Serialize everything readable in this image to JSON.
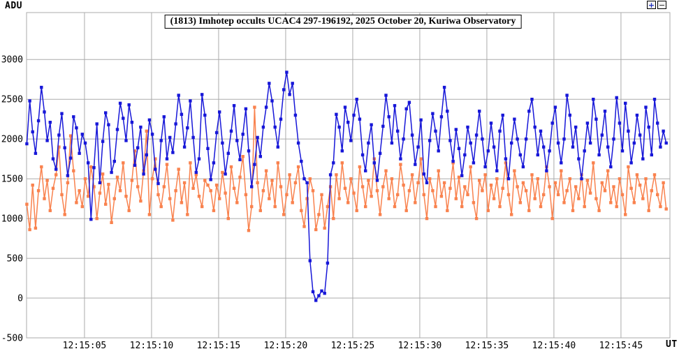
{
  "window": {
    "zoom_in_label": "+",
    "zoom_out_label": "−"
  },
  "colors": {
    "target": "#1717D8",
    "comparison": "#F9824E",
    "grid": "#ABABAB",
    "background": "#FFFFFF",
    "text": "#000000"
  },
  "chart_data": {
    "type": "line",
    "title": "(1813) Imhotep occults UCAC4 297-196192, 2025 October 20, Kuriwa Observatory",
    "grid": true,
    "legend": "none",
    "y_axis": {
      "label": "ADU",
      "ylim": [
        -500,
        3590
      ],
      "tick_values": [
        3000,
        2500,
        2000,
        1500,
        1000,
        500,
        0,
        -500
      ],
      "tick_labels": [
        "3000",
        "2500",
        "2000",
        "1500",
        "1000",
        "500",
        "0",
        "-500"
      ]
    },
    "x_axis": {
      "label": "UT",
      "xlim_seconds": [
        0.68,
        48.65
      ],
      "tick_seconds": [
        5,
        10,
        15,
        20,
        25,
        30,
        35,
        40,
        45
      ],
      "tick_labels": [
        "12:15:05",
        "12:15:10",
        "12:15:15",
        "12:15:20",
        "12:15:25",
        "12:15:30",
        "12:15:35",
        "12:15:40",
        "12:15:45"
      ]
    },
    "series": [
      {
        "name": "target-star",
        "color": "#1717D8",
        "marker": "square",
        "t0": 0.7,
        "dt": 0.2177,
        "values": [
          1940,
          2480,
          2090,
          1820,
          2230,
          2650,
          2340,
          1980,
          2210,
          1750,
          1620,
          2050,
          2320,
          1890,
          1540,
          1760,
          2280,
          2140,
          1820,
          2060,
          1950,
          1700,
          990,
          1640,
          2190,
          1450,
          1970,
          2330,
          2180,
          1580,
          1720,
          2120,
          2450,
          2260,
          1980,
          2430,
          2210,
          1670,
          1890,
          2150,
          1560,
          1800,
          2240,
          2060,
          1620,
          1440,
          1980,
          2280,
          1750,
          2020,
          1830,
          2190,
          2550,
          2310,
          1900,
          2140,
          2480,
          2020,
          1580,
          1750,
          2560,
          2300,
          1880,
          1490,
          1700,
          2080,
          2340,
          1950,
          1560,
          1820,
          2100,
          2420,
          1980,
          1740,
          2060,
          2380,
          1850,
          1400,
          1680,
          2020,
          1780,
          2150,
          2400,
          2700,
          2480,
          2150,
          1900,
          2250,
          2620,
          2840,
          2560,
          2700,
          2300,
          1950,
          1720,
          1500,
          1450,
          470,
          80,
          -30,
          30,
          90,
          60,
          440,
          1550,
          1700,
          2310,
          2150,
          1850,
          2400,
          2210,
          1980,
          2300,
          2500,
          2250,
          1800,
          1600,
          1950,
          2180,
          1700,
          1480,
          1820,
          2160,
          2550,
          2280,
          1950,
          2420,
          2100,
          1750,
          2000,
          2380,
          2460,
          2050,
          1680,
          1900,
          2240,
          1560,
          1450,
          1980,
          2320,
          2100,
          1850,
          2280,
          2650,
          2350,
          1980,
          1720,
          2120,
          1880,
          1540,
          1800,
          2150,
          1950,
          1700,
          2050,
          2350,
          2000,
          1650,
          1850,
          2200,
          1900,
          1600,
          2100,
          2300,
          1750,
          1500,
          1950,
          2250,
          2000,
          1800,
          1650,
          2000,
          2350,
          2500,
          2150,
          1800,
          2100,
          1900,
          1600,
          1850,
          2200,
          2400,
          1950,
          1700,
          2000,
          2550,
          2300,
          1900,
          2150,
          1750,
          1500,
          1850,
          2200,
          1950,
          2500,
          2250,
          1800,
          2050,
          2350,
          1900,
          1650,
          2000,
          2520,
          2200,
          1850,
          2450,
          2100,
          1700,
          1950,
          2300,
          2050,
          1750,
          2400,
          2150,
          1800,
          2500,
          2200,
          1900,
          2100,
          1950
        ]
      },
      {
        "name": "comparison-star",
        "color": "#F9824E",
        "marker": "square",
        "t0": 0.7,
        "dt": 0.2177,
        "values": [
          1180,
          860,
          1420,
          880,
          1350,
          1650,
          1250,
          1480,
          1100,
          1380,
          1550,
          1900,
          1300,
          1050,
          1450,
          2040,
          1600,
          1200,
          1350,
          1150,
          1500,
          1280,
          1650,
          1400,
          1000,
          1320,
          1560,
          1180,
          1430,
          950,
          1250,
          1520,
          1350,
          1700,
          1280,
          1100,
          1480,
          1850,
          1400,
          1220,
          1600,
          2100,
          1050,
          1500,
          1750,
          1300,
          1150,
          1400,
          1680,
          1250,
          980,
          1350,
          1620,
          1200,
          1450,
          1050,
          1700,
          1380,
          1550,
          1280,
          1150,
          1480,
          1420,
          1350,
          1100,
          1420,
          1250,
          1580,
          1320,
          1000,
          1650,
          1380,
          1200,
          1520,
          1780,
          1300,
          850,
          1150,
          2400,
          1450,
          1100,
          1350,
          1600,
          1250,
          1480,
          1150,
          1700,
          1400,
          1050,
          1300,
          1550,
          1200,
          1450,
          1650,
          1100,
          900,
          1250,
          1500,
          1350,
          860,
          1050,
          1300,
          880,
          1150,
          1400,
          1000,
          1550,
          1250,
          1700,
          1380,
          1200,
          1500,
          1320,
          1100,
          1650,
          1400,
          1150,
          1480,
          1280,
          1750,
          1350,
          1050,
          1400,
          1600,
          1250,
          1500,
          1150,
          1300,
          1680,
          1420,
          1100,
          1350,
          1550,
          1200,
          1450,
          1750,
          1300,
          1000,
          1500,
          1350,
          1150,
          1600,
          1280,
          1450,
          1100,
          1380,
          1700,
          1250,
          1520,
          1150,
          1400,
          1300,
          1650,
          1200,
          1000,
          1480,
          1350,
          1550,
          1100,
          1420,
          1250,
          1500,
          1150,
          1380,
          1700,
          1300,
          1050,
          1600,
          1400,
          1200,
          1450,
          1350,
          1100,
          1550,
          1250,
          1500,
          1150,
          1300,
          1650,
          1400,
          1000,
          1450,
          1300,
          1600,
          1200,
          1350,
          1500,
          1100,
          1400,
          1250,
          1550,
          1150,
          1480,
          1320,
          1700,
          1250,
          1100,
          1450,
          1350,
          1600,
          1200,
          1400,
          1150,
          1500,
          1300,
          1050,
          1650,
          1380,
          1200,
          1550,
          1420,
          1250,
          1500,
          1100,
          1350,
          1550,
          1300,
          1150,
          1450,
          1120
        ]
      }
    ]
  }
}
